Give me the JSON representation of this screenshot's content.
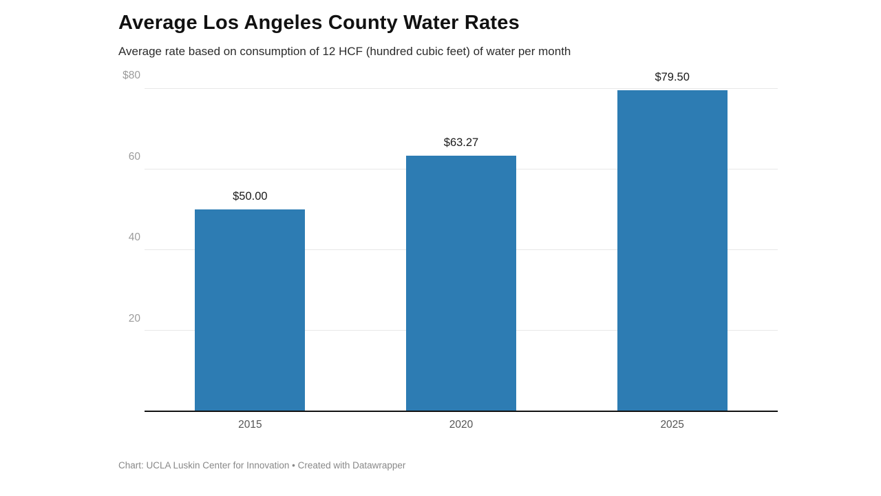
{
  "chart": {
    "title": "Average Los Angeles County Water Rates",
    "subtitle": "Average rate based on consumption of 12 HCF (hundred cubic feet) of water per month",
    "footer": "Chart: UCLA Luskin Center for Innovation • Created with Datawrapper"
  },
  "chart_data": {
    "type": "bar",
    "title": "Average Los Angeles County Water Rates",
    "subtitle": "Average rate based on consumption of 12 HCF (hundred cubic feet) of water per month",
    "categories": [
      "2015",
      "2020",
      "2025"
    ],
    "values": [
      50.0,
      63.27,
      79.5
    ],
    "value_labels": [
      "$50.00",
      "$63.27",
      "$79.50"
    ],
    "xlabel": "",
    "ylabel": "",
    "ylim": [
      0,
      80
    ],
    "yticks": [
      {
        "value": 20,
        "label": "20"
      },
      {
        "value": 40,
        "label": "40"
      },
      {
        "value": 60,
        "label": "60"
      },
      {
        "value": 80,
        "label": "$80"
      }
    ],
    "grid": true,
    "legend": "none",
    "bar_color": "#2d7cb3",
    "gridline_color": "#e7e7e7",
    "baseline_color": "#111111",
    "source_note": "Chart: UCLA Luskin Center for Innovation • Created with Datawrapper"
  }
}
